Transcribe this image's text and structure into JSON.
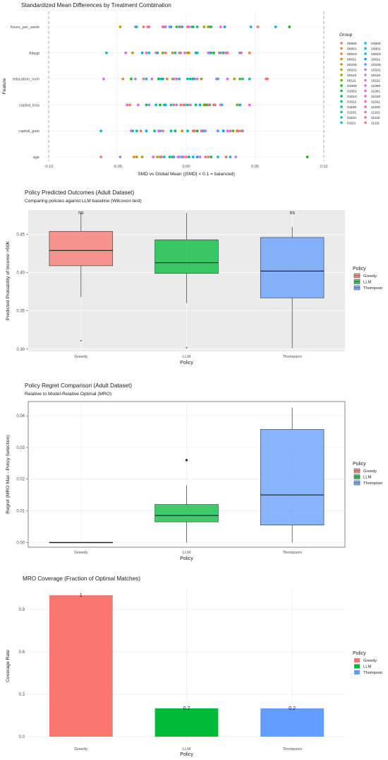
{
  "chart_data": [
    {
      "type": "scatter",
      "title": "Standardized Mean Differences by Treatment Combination",
      "xlabel": "SMD vs Global Mean (|SMD| < 0.1 = balanced)",
      "ylabel": "Feature",
      "xlim": [
        -0.1,
        0.1
      ],
      "x_ticks": [
        "-0.10",
        "-0.05",
        "0.00",
        "0.05",
        "0.10"
      ],
      "x_tick_values": [
        -0.1,
        -0.05,
        0.0,
        0.05,
        0.1
      ],
      "reference_lines": [
        -0.1,
        0.1
      ],
      "categories": [
        "hours_per_week",
        "fnlwgt",
        "education_num",
        "capital_loss",
        "capital_gain",
        "age"
      ],
      "legend_title": "Group",
      "legend_position": "right",
      "groups": [
        "00000",
        "00001",
        "00010",
        "00011",
        "00100",
        "00101",
        "00110",
        "00111",
        "01000",
        "01001",
        "01010",
        "01011",
        "01100",
        "01101",
        "01110",
        "01111",
        "10000",
        "10001",
        "10010",
        "10011",
        "10100",
        "10101",
        "10110",
        "10111",
        "11000",
        "11001",
        "11010",
        "11011",
        "11100",
        "11101",
        "11110",
        "11111"
      ],
      "group_colors": [
        "#F8766D",
        "#F07F4A",
        "#E4891C",
        "#D49200",
        "#C09B00",
        "#A8A400",
        "#8AAB00",
        "#63B200",
        "#1BB61A",
        "#00BA42",
        "#00BD5F",
        "#00BF78",
        "#00C08F",
        "#00C1A5",
        "#00BFBA",
        "#00BDCD",
        "#00B9DE",
        "#00B4ED",
        "#00ABF8",
        "#00A2FF",
        "#5B96FF",
        "#8F8AFF",
        "#B07EFF",
        "#C974FF",
        "#DC6CF5",
        "#EA65E7",
        "#F463D5",
        "#FA62C1",
        "#FE64AC",
        "#FE6996",
        "#FB6F82",
        "#F77271"
      ],
      "points": {
        "hours_per_week": [
          -0.037,
          -0.031,
          0.017,
          0.004,
          -0.048,
          0.013,
          0.016,
          -0.007,
          0.075,
          -0.017,
          0.005,
          0.018,
          0.008,
          -0.011,
          -0.036,
          0.047,
          0.065,
          -0.005,
          -0.003,
          0.028,
          -0.012,
          -0.015,
          0.002,
          -0.004,
          -0.017,
          -0.027,
          0.025,
          0.001,
          -0.028,
          -0.016,
          -0.004,
          0.052
        ],
        "fnlwgt": [
          -0.015,
          0.046,
          -0.01,
          0.002,
          -0.039,
          0.001,
          0.025,
          -0.017,
          0.02,
          -0.021,
          0.007,
          0.018,
          -0.008,
          0.008,
          -0.058,
          -0.027,
          0.008,
          0.017,
          0.027,
          -0.032,
          0.039,
          -0.004,
          0.024,
          -0.022,
          -0.044,
          0.016,
          -0.001,
          0.029,
          -0.029,
          0.04,
          -0.005,
          0.03
        ],
        "education_num": [
          0.005,
          -0.046,
          -0.014,
          -0.02,
          -0.01,
          0.035,
          0.011,
          0.039,
          -0.04,
          -0.02,
          0.005,
          0.003,
          -0.018,
          0.046,
          0.001,
          -0.029,
          0.041,
          -0.005,
          0.023,
          -0.017,
          0.006,
          -0.037,
          -0.009,
          0.022,
          0.008,
          0.03,
          -0.06,
          -0.025,
          -0.007,
          -0.031,
          0.058,
          0.059
        ],
        "capital_loss": [
          0.025,
          0.013,
          -0.041,
          0.014,
          -0.002,
          0.02,
          0.037,
          0.013,
          -0.019,
          0.015,
          -0.029,
          0.007,
          0.017,
          0.001,
          -0.016,
          -0.011,
          -0.022,
          -0.015,
          0.01,
          0.039,
          0.026,
          -0.007,
          -0.027,
          -0.035,
          -0.001,
          -0.043,
          0.046,
          0.021,
          0.003,
          -0.004,
          0.016,
          -0.009
        ],
        "capital_gain": [
          0.013,
          0.005,
          0.037,
          0.037,
          -0.003,
          0.04,
          0.027,
          0.034,
          0.008,
          -0.039,
          -0.008,
          -0.023,
          -0.011,
          -0.036,
          0.001,
          0.012,
          -0.062,
          -0.019,
          -0.029,
          0.027,
          0.023,
          0.041,
          0.014,
          -0.04,
          0.03,
          -0.02,
          0.032,
          0.011,
          0.006,
          0.038,
          -0.017,
          -0.033
        ],
        "age": [
          -0.062,
          0.016,
          -0.038,
          -0.036,
          -0.021,
          -0.032,
          -0.019,
          -0.009,
          0.088,
          0.018,
          0.002,
          -0.012,
          -0.01,
          -0.016,
          0.029,
          0.023,
          0.032,
          0.005,
          -0.003,
          0.008,
          -0.009,
          -0.048,
          -0.005,
          0.036,
          -0.006,
          0.01,
          -0.024,
          0.0,
          -0.018,
          0.014,
          -0.002,
          0.029
        ]
      }
    },
    {
      "type": "box",
      "title": "Policy Predicted Outcomes (Adult Dataset)",
      "subtitle": "Comparing policies against LLM baseline (Wilcoxon test)",
      "xlabel": "Policy",
      "ylabel": "Predicted Probability of Income >50K",
      "ylim": [
        0.297,
        0.482
      ],
      "y_ticks": [
        "0.30",
        "0.35",
        "0.40",
        "0.45"
      ],
      "y_tick_values": [
        0.3,
        0.35,
        0.4,
        0.45
      ],
      "categories": [
        "Greedy",
        "LLM",
        "Thompson"
      ],
      "colors": [
        "#F8766D",
        "#00BA38",
        "#619CFF"
      ],
      "boxes": [
        {
          "lower": 0.368,
          "q1": 0.409,
          "median": 0.429,
          "q3": 0.454,
          "upper": 0.478,
          "outliers": [
            0.311
          ]
        },
        {
          "lower": 0.36,
          "q1": 0.399,
          "median": 0.413,
          "q3": 0.443,
          "upper": 0.478,
          "outliers": [
            0.302
          ]
        },
        {
          "lower": 0.301,
          "q1": 0.367,
          "median": 0.402,
          "q3": 0.446,
          "upper": 0.46,
          "outliers": []
        }
      ],
      "significance": [
        {
          "category": "Greedy",
          "label": "ns"
        },
        {
          "category": "Thompson",
          "label": "ns"
        }
      ],
      "legend_title": "Policy",
      "legend_position": "right"
    },
    {
      "type": "box",
      "title": "Policy Regret Comparison (Adult Dataset)",
      "subtitle": "Relative to Model-Relative Optimal (MRO)",
      "xlabel": "Policy",
      "ylabel": "Regret (MRO Max - Policy Selection)",
      "ylim": [
        -0.0015,
        0.0445
      ],
      "y_ticks": [
        "0.00",
        "0.01",
        "0.02",
        "0.03",
        "0.04"
      ],
      "y_tick_values": [
        0.0,
        0.01,
        0.02,
        0.03,
        0.04
      ],
      "categories": [
        "Greedy",
        "LLM",
        "Thompson"
      ],
      "colors": [
        "#F8766D",
        "#00BA38",
        "#619CFF"
      ],
      "boxes": [
        {
          "lower": 0.0,
          "q1": 0.0,
          "median": 0.0,
          "q3": 0.0,
          "upper": 0.0,
          "outliers": []
        },
        {
          "lower": 0.0,
          "q1": 0.0065,
          "median": 0.0085,
          "q3": 0.012,
          "upper": 0.018,
          "outliers": [
            0.026
          ]
        },
        {
          "lower": 0.0,
          "q1": 0.0055,
          "median": 0.015,
          "q3": 0.0357,
          "upper": 0.0425,
          "outliers": []
        }
      ],
      "legend_title": "Policy",
      "legend_position": "right"
    },
    {
      "type": "bar",
      "title": "MRO Coverage (Fraction of Optimal Matches)",
      "xlabel": "Policy",
      "ylabel": "Coverage Rate",
      "ylim": [
        -0.05,
        1.05
      ],
      "y_ticks": [
        "0.0",
        "0.3",
        "0.6",
        "0.9"
      ],
      "y_tick_values": [
        0.0,
        0.3,
        0.6,
        0.9
      ],
      "categories": [
        "Greedy",
        "LLM",
        "Thompson"
      ],
      "values": [
        1.0,
        0.2,
        0.2
      ],
      "value_labels": [
        "1",
        "0.2",
        "0.2"
      ],
      "colors": [
        "#F8766D",
        "#00BA38",
        "#619CFF"
      ],
      "legend_title": "Policy",
      "legend_position": "right"
    }
  ]
}
